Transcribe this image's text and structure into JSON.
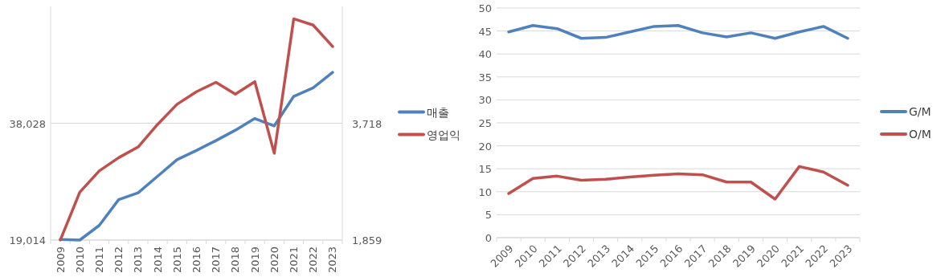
{
  "chart_data": [
    {
      "type": "line",
      "categories": [
        "2009",
        "2010",
        "2011",
        "2012",
        "2013",
        "2014",
        "2015",
        "2016",
        "2017",
        "2018",
        "2019",
        "2020",
        "2021",
        "2022",
        "2023"
      ],
      "series": [
        {
          "name": "매출",
          "color": "#4f81bd",
          "values": [
            19100,
            19014,
            21400,
            25600,
            26700,
            29400,
            32100,
            33600,
            35200,
            36900,
            38800,
            37600,
            42400,
            43800,
            46300
          ]
        },
        {
          "name": "영업익",
          "color": "#c0504d",
          "axis": "y2",
          "values": [
            1860,
            2620,
            2960,
            3170,
            3340,
            3700,
            4020,
            4220,
            4370,
            4180,
            4380,
            3240,
            5380,
            5280,
            4940
          ]
        }
      ],
      "ylim": [
        19014,
        57042
      ],
      "yticks": [
        {
          "value": 19014,
          "label": "19,014"
        },
        {
          "value": 38028,
          "label": "38,028"
        }
      ],
      "y2lim": [
        1859,
        5577
      ],
      "y2ticks": [
        {
          "value": 1859,
          "label": "1,859"
        },
        {
          "value": 3718,
          "label": "3,718"
        }
      ],
      "grid": "y",
      "legend": "right"
    },
    {
      "type": "line",
      "categories": [
        "2009",
        "2010",
        "2011",
        "2012",
        "2013",
        "2014",
        "2015",
        "2016",
        "2017",
        "2018",
        "2019",
        "2020",
        "2021",
        "2022",
        "2023"
      ],
      "series": [
        {
          "name": "G/M",
          "color": "#4f81bd",
          "values": [
            44.8,
            46.2,
            45.5,
            43.4,
            43.6,
            44.8,
            46.0,
            46.2,
            44.6,
            43.7,
            44.6,
            43.4,
            44.8,
            46.0,
            43.4
          ]
        },
        {
          "name": "O/M",
          "color": "#c0504d",
          "values": [
            9.6,
            12.9,
            13.4,
            12.5,
            12.7,
            13.2,
            13.6,
            13.9,
            13.7,
            12.1,
            12.1,
            8.4,
            15.5,
            14.3,
            11.4
          ]
        }
      ],
      "ylim": [
        0,
        50
      ],
      "yticks": [
        0,
        5,
        10,
        15,
        20,
        25,
        30,
        35,
        40,
        45,
        50
      ],
      "grid": "y",
      "legend": "right"
    }
  ]
}
